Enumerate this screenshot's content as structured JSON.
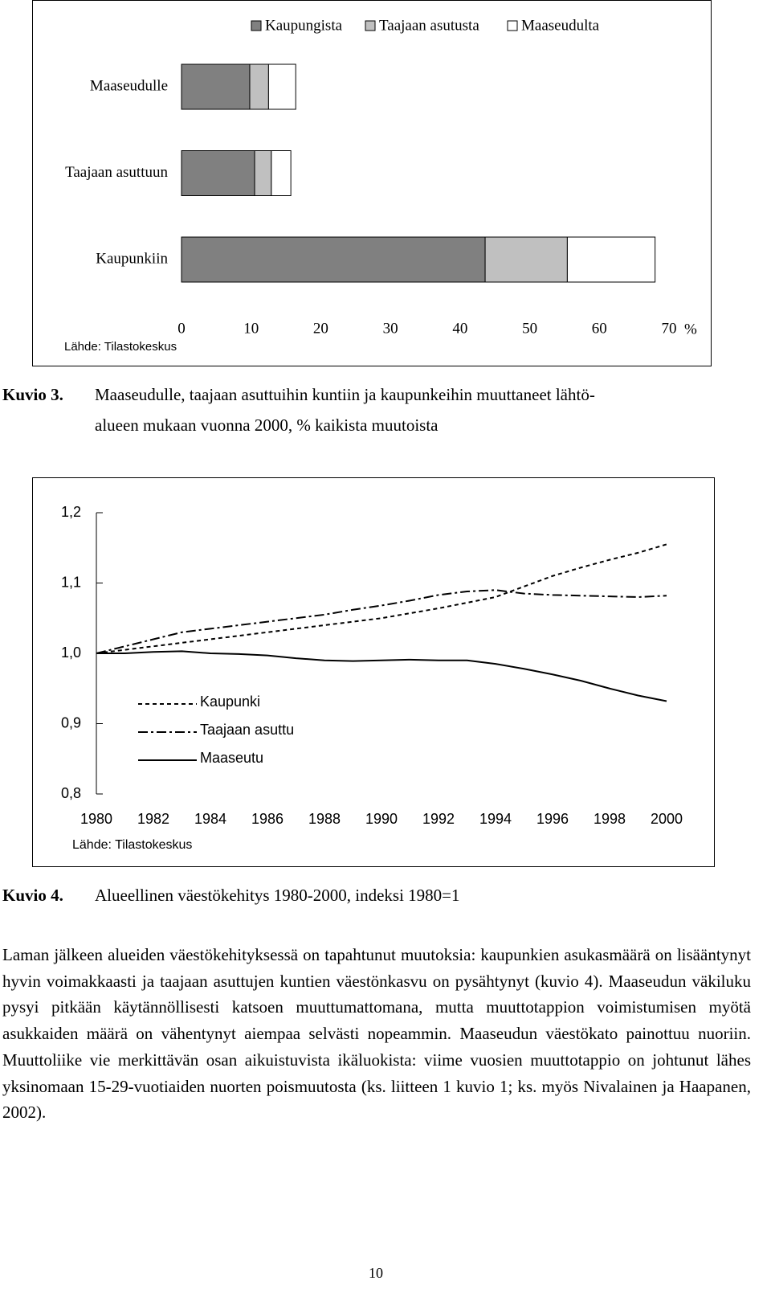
{
  "chart_data": [
    {
      "type": "hbar",
      "categories": [
        "Maaseudulle",
        "Taajaan asuttuun",
        "Kaupunkiin"
      ],
      "series": [
        {
          "name": "Kaupungista",
          "color": "#808080",
          "values": [
            9.8,
            10.5,
            43.6
          ]
        },
        {
          "name": "Taajaan asutusta",
          "color": "#c0c0c0",
          "values": [
            2.7,
            2.4,
            11.8
          ]
        },
        {
          "name": "Maaseudulta",
          "color": "#ffffff",
          "values": [
            3.9,
            2.8,
            12.6
          ]
        }
      ],
      "xlim": [
        0,
        70
      ],
      "xticks": [
        0,
        10,
        20,
        30,
        40,
        50,
        60,
        70
      ],
      "x_label": "%",
      "source": "Lähde: Tilastokeskus",
      "grid": false,
      "legend": "top"
    },
    {
      "type": "line",
      "x": [
        1980,
        1981,
        1982,
        1983,
        1984,
        1985,
        1986,
        1987,
        1988,
        1989,
        1990,
        1991,
        1992,
        1993,
        1994,
        1995,
        1996,
        1997,
        1998,
        1999,
        2000
      ],
      "series": [
        {
          "name": "Kaupunki",
          "color": "#000000",
          "style": "dotted",
          "values": [
            1.0,
            1.005,
            1.01,
            1.015,
            1.02,
            1.025,
            1.03,
            1.035,
            1.04,
            1.045,
            1.05,
            1.057,
            1.064,
            1.072,
            1.08,
            1.095,
            1.11,
            1.122,
            1.133,
            1.143,
            1.155
          ]
        },
        {
          "name": "Taajaan asuttu",
          "color": "#000000",
          "style": "dashdot",
          "values": [
            1.0,
            1.01,
            1.02,
            1.03,
            1.035,
            1.04,
            1.045,
            1.05,
            1.055,
            1.062,
            1.068,
            1.075,
            1.083,
            1.088,
            1.09,
            1.085,
            1.083,
            1.082,
            1.081,
            1.08,
            1.082
          ]
        },
        {
          "name": "Maaseutu",
          "color": "#000000",
          "style": "solid",
          "values": [
            1.0,
            1.0,
            1.002,
            1.003,
            1.0,
            0.999,
            0.997,
            0.993,
            0.99,
            0.989,
            0.99,
            0.991,
            0.99,
            0.99,
            0.985,
            0.978,
            0.97,
            0.961,
            0.95,
            0.94,
            0.932
          ]
        }
      ],
      "xlim": [
        1980,
        2000
      ],
      "xticks": [
        1980,
        1982,
        1984,
        1986,
        1988,
        1990,
        1992,
        1994,
        1996,
        1998,
        2000
      ],
      "ylim": [
        0.8,
        1.2
      ],
      "yticks": [
        {
          "value": 0.8,
          "label": "0,8"
        },
        {
          "value": 0.9,
          "label": "0,9"
        },
        {
          "value": 1.0,
          "label": "1,0"
        },
        {
          "value": 1.1,
          "label": "1,1"
        },
        {
          "value": 1.2,
          "label": "1,2"
        }
      ],
      "source": "Lähde: Tilastokeskus",
      "grid": false,
      "legend": "lower left"
    }
  ],
  "captions": [
    {
      "label": "Kuvio 3.",
      "lines": [
        "Maaseudulle, taajaan asuttuihin kuntiin ja kaupunkeihin muuttaneet lähtö-",
        "alueen mukaan vuonna 2000, % kaikista muutoista"
      ]
    },
    {
      "label": "Kuvio 4.",
      "lines": [
        "Alueellinen väestökehitys 1980-2000, indeksi 1980=1"
      ]
    }
  ],
  "body": "Laman jälkeen alueiden väestökehityksessä on tapahtunut muutoksia: kaupunkien asukasmäärä on lisääntynyt hyvin voimakkaasti ja taajaan asuttujen kuntien väestönkasvu on pysähtynyt (kuvio 4). Maaseudun väkiluku pysyi pitkään käytännöllisesti katsoen muuttumattomana, mutta muuttotappion voimistumisen myötä asukkaiden määrä on vähentynyt aiempaa selvästi nopeammin. Maaseudun väestökato painottuu nuoriin. Muuttoliike vie merkittävän osan aikuistuvista ikäluokista: viime vuosien muuttotappio on johtunut lähes yksinomaan 15-29-vuotiaiden nuorten poismuutosta (ks. liitteen 1 kuvio 1; ks. myös Nivalainen ja Haapanen, 2002).",
  "page_number": "10"
}
